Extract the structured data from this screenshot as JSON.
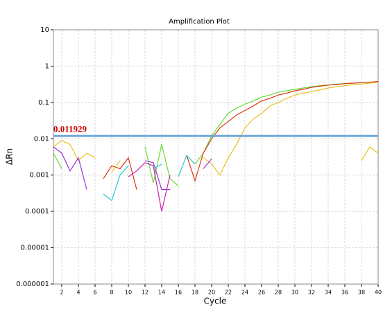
{
  "chart_data": {
    "type": "line",
    "title": "Amplification Plot",
    "x_label": "Cycle",
    "y_label": "ΔRn",
    "log_y": true,
    "grid": true,
    "x": [
      1,
      2,
      3,
      4,
      5,
      6,
      7,
      8,
      9,
      10,
      11,
      12,
      13,
      14,
      15,
      16,
      17,
      18,
      19,
      20,
      21,
      22,
      23,
      24,
      25,
      26,
      27,
      28,
      29,
      30,
      31,
      32,
      33,
      34,
      35,
      36,
      37,
      38,
      39,
      40
    ],
    "xlim": [
      1,
      40
    ],
    "xticks": [
      2,
      4,
      6,
      8,
      10,
      12,
      14,
      16,
      18,
      20,
      22,
      24,
      26,
      28,
      30,
      32,
      34,
      36,
      38,
      40
    ],
    "ylim": [
      1e-06,
      10
    ],
    "yticks": [
      10,
      1,
      0.1,
      0.01,
      0.001,
      0.0001,
      1e-05,
      1e-06
    ],
    "threshold": 0.011929,
    "threshold_color": "#6fa8dc",
    "series": [
      {
        "color": "#66dd33",
        "values": [
          0.004,
          0.0015,
          null,
          null,
          null,
          null,
          null,
          null,
          null,
          null,
          null,
          0.006,
          0.0006,
          0.007,
          0.0008,
          0.0005,
          null,
          0.002,
          0.004,
          0.012,
          0.025,
          0.05,
          0.07,
          0.09,
          0.11,
          0.14,
          0.16,
          0.19,
          0.21,
          0.23,
          0.25,
          0.27,
          0.29,
          0.3,
          0.32,
          0.33,
          0.34,
          0.35,
          0.36,
          0.37
        ]
      },
      {
        "color": "#dd3311",
        "values": [
          null,
          null,
          null,
          null,
          null,
          null,
          0.0008,
          0.0018,
          0.0015,
          0.003,
          0.0004,
          null,
          null,
          null,
          null,
          null,
          0.0035,
          0.0007,
          0.004,
          0.01,
          0.02,
          0.03,
          0.045,
          0.06,
          0.08,
          0.11,
          0.13,
          0.16,
          0.18,
          0.21,
          0.23,
          0.26,
          0.28,
          0.3,
          0.31,
          0.33,
          0.34,
          0.35,
          0.36,
          0.38
        ]
      },
      {
        "color": "#e8c020",
        "values": [
          0.006,
          0.009,
          0.007,
          0.0025,
          0.004,
          0.003,
          null,
          0.0012,
          0.0025,
          null,
          null,
          null,
          null,
          null,
          null,
          null,
          null,
          null,
          0.003,
          0.002,
          0.001,
          0.003,
          0.007,
          0.02,
          0.035,
          0.05,
          0.08,
          0.1,
          0.13,
          0.16,
          0.18,
          0.2,
          0.22,
          0.25,
          0.27,
          0.29,
          0.31,
          0.32,
          0.34,
          0.36
        ]
      },
      {
        "color": "#e8c020",
        "values": [
          null,
          null,
          null,
          null,
          null,
          null,
          null,
          null,
          null,
          null,
          null,
          null,
          null,
          null,
          null,
          null,
          null,
          null,
          null,
          null,
          null,
          null,
          null,
          null,
          null,
          null,
          null,
          null,
          null,
          null,
          null,
          null,
          null,
          null,
          null,
          null,
          null,
          0.0025,
          0.006,
          0.004
        ]
      },
      {
        "color": "#9933dd",
        "values": [
          0.006,
          0.004,
          0.0013,
          0.003,
          0.0004,
          null,
          null,
          null,
          null,
          null,
          null,
          0.0025,
          0.0022,
          0.0004,
          0.0004,
          null,
          null,
          null,
          0.0015,
          0.0028,
          null,
          null,
          null,
          null,
          null,
          null,
          null,
          null,
          null,
          null,
          null,
          null,
          null,
          null,
          null,
          null,
          null,
          null,
          null,
          null
        ]
      },
      {
        "color": "#22cccc",
        "values": [
          null,
          null,
          null,
          null,
          null,
          null,
          0.0003,
          0.0002,
          0.001,
          0.0018,
          null,
          null,
          0.0015,
          0.002,
          null,
          0.0009,
          0.0035,
          0.002,
          null,
          null,
          null,
          null,
          null,
          null,
          null,
          null,
          null,
          null,
          null,
          null,
          null,
          null,
          null,
          null,
          null,
          null,
          null,
          null,
          null,
          null
        ]
      },
      {
        "color": "#cc22aa",
        "values": [
          null,
          null,
          null,
          null,
          null,
          null,
          null,
          null,
          null,
          0.0009,
          0.0013,
          0.0022,
          0.0018,
          0.0001,
          0.001,
          null,
          null,
          null,
          null,
          null,
          null,
          null,
          null,
          null,
          null,
          null,
          null,
          null,
          null,
          null,
          null,
          null,
          null,
          null,
          null,
          null,
          null,
          null,
          null,
          null
        ]
      }
    ]
  }
}
